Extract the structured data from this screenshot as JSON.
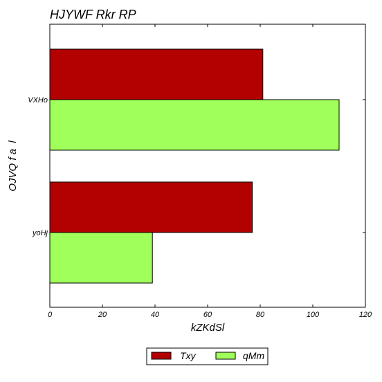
{
  "chart_data": {
    "type": "bar",
    "orientation": "horizontal",
    "title": "HJYWF Rkr RP",
    "xlabel": "kZKdSl",
    "ylabel": "OJVQ f a  l",
    "categories": [
      "VXHo",
      "yoHj"
    ],
    "series": [
      {
        "name": "Txy",
        "color": "#b30000",
        "values": [
          81,
          77
        ]
      },
      {
        "name": "qMm",
        "color": "#a0ff5a",
        "values": [
          110,
          39
        ]
      }
    ],
    "xlim": [
      0,
      120
    ],
    "xticks": [
      0,
      20,
      40,
      60,
      80,
      100,
      120
    ],
    "grid": false,
    "legend_position": "bottom-center"
  }
}
